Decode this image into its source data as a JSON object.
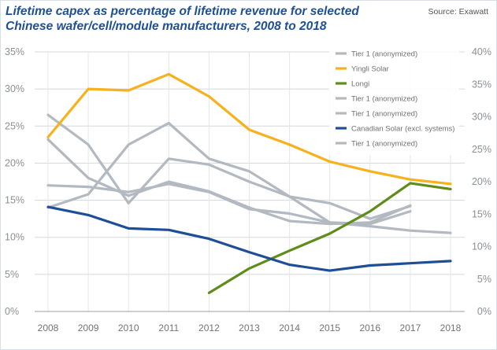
{
  "title_lines": [
    "Lifetime capex as percentage of lifetime revenue for selected",
    "Chinese wafer/cell/module manufacturers, 2008 to 2018"
  ],
  "source": "Source: Exawatt",
  "chart_data": {
    "type": "line",
    "x": [
      2008,
      2009,
      2010,
      2011,
      2012,
      2013,
      2014,
      2015,
      2016,
      2017,
      2018
    ],
    "ylim_left": [
      0,
      35
    ],
    "ylim_right": [
      0,
      40
    ],
    "yticks_left": [
      "0%",
      "5%",
      "10%",
      "15%",
      "20%",
      "25%",
      "30%",
      "35%"
    ],
    "yticks_right": [
      "0%",
      "5%",
      "10%",
      "15%",
      "20%",
      "25%",
      "30%",
      "35%",
      "40%"
    ],
    "grid": true,
    "legend_position": "top-right",
    "series": [
      {
        "name": "Tier 1 (anonymized)",
        "color": "#b3b9c0",
        "values": [
          26.5,
          22.5,
          14.6,
          20.6,
          19.8,
          17.5,
          15.5,
          12.0,
          11.8,
          13.5,
          null
        ]
      },
      {
        "name": "Yingli Solar",
        "color": "#f7b11b",
        "values": [
          23.5,
          30.0,
          29.8,
          32.0,
          29.0,
          24.5,
          22.5,
          20.2,
          18.9,
          17.8,
          17.2
        ]
      },
      {
        "name": "Longi",
        "color": "#5f8c1b",
        "values": [
          null,
          null,
          null,
          null,
          2.5,
          5.8,
          8.2,
          10.5,
          13.5,
          17.3,
          16.5
        ]
      },
      {
        "name": "Tier 1 (anonymized)",
        "color": "#b3b9c0",
        "values": [
          14.0,
          15.8,
          22.5,
          25.4,
          20.6,
          18.9,
          15.5,
          14.6,
          12.5,
          14.2,
          null
        ]
      },
      {
        "name": "Tier 1 (anonymized)",
        "color": "#b3b9c0",
        "values": [
          23.2,
          18.0,
          15.6,
          17.5,
          16.2,
          14.0,
          12.2,
          11.8,
          12.0,
          14.3,
          null
        ]
      },
      {
        "name": "Canadian Solar (excl. systems)",
        "color": "#1e4f96",
        "values": [
          14.1,
          13.0,
          11.2,
          11.0,
          9.8,
          8.0,
          6.3,
          5.5,
          6.2,
          6.5,
          6.8
        ]
      },
      {
        "name": "Tier 1 (anonymized)",
        "color": "#b3b9c0",
        "values": [
          17.0,
          16.8,
          16.1,
          17.2,
          16.1,
          13.8,
          13.2,
          12.0,
          11.5,
          10.9,
          10.6
        ]
      }
    ]
  }
}
